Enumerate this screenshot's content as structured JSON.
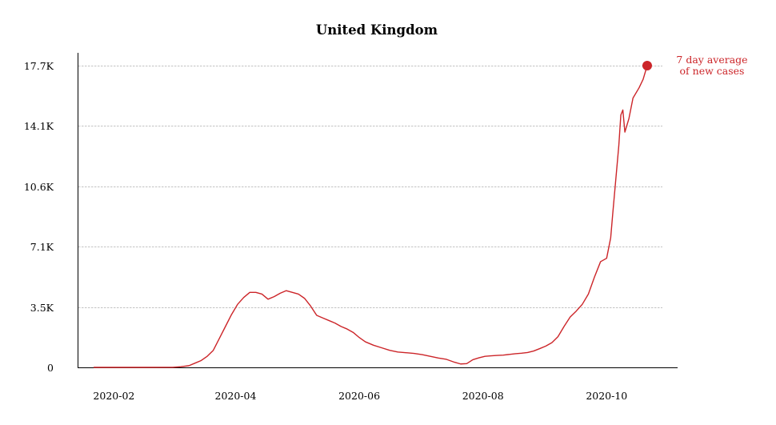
{
  "chart_data": {
    "type": "line",
    "title": "United Kingdom",
    "xlabel": "",
    "ylabel": "",
    "x_start": "2020-01-22",
    "x_end": "2020-10-21",
    "xlim": [
      "2020-01-20",
      "2020-11-05"
    ],
    "ylim": [
      0,
      17700
    ],
    "y_ticks": [
      {
        "value": 0,
        "label": "0"
      },
      {
        "value": 3540,
        "label": "3.5K"
      },
      {
        "value": 7080,
        "label": "7.1K"
      },
      {
        "value": 10620,
        "label": "10.6K"
      },
      {
        "value": 14160,
        "label": "14.1K"
      },
      {
        "value": 17700,
        "label": "17.7K"
      }
    ],
    "x_ticks": [
      {
        "value": "2020-02-01",
        "label": "2020-02"
      },
      {
        "value": "2020-04-01",
        "label": "2020-04"
      },
      {
        "value": "2020-06-01",
        "label": "2020-06"
      },
      {
        "value": "2020-08-01",
        "label": "2020-08"
      },
      {
        "value": "2020-10-01",
        "label": "2020-10"
      }
    ],
    "grid": {
      "horizontal": true,
      "vertical": false,
      "style": "dashed"
    },
    "colors": {
      "series": "#cc2529",
      "grid": "#b0b0b0",
      "axis": "#000000",
      "text": "#000000"
    },
    "series": [
      {
        "name": "7 day average of new cases",
        "annotation_lines": [
          "7 day average",
          "of new cases"
        ],
        "marker": "last-point",
        "points": [
          [
            "2020-01-22",
            0
          ],
          [
            "2020-02-15",
            0
          ],
          [
            "2020-03-01",
            5
          ],
          [
            "2020-03-05",
            40
          ],
          [
            "2020-03-09",
            100
          ],
          [
            "2020-03-12",
            250
          ],
          [
            "2020-03-15",
            400
          ],
          [
            "2020-03-18",
            650
          ],
          [
            "2020-03-21",
            1000
          ],
          [
            "2020-03-24",
            1700
          ],
          [
            "2020-03-27",
            2400
          ],
          [
            "2020-03-30",
            3100
          ],
          [
            "2020-04-02",
            3700
          ],
          [
            "2020-04-05",
            4100
          ],
          [
            "2020-04-08",
            4400
          ],
          [
            "2020-04-11",
            4400
          ],
          [
            "2020-04-14",
            4300
          ],
          [
            "2020-04-17",
            4000
          ],
          [
            "2020-04-20",
            4150
          ],
          [
            "2020-04-23",
            4350
          ],
          [
            "2020-04-26",
            4500
          ],
          [
            "2020-04-29",
            4400
          ],
          [
            "2020-05-02",
            4300
          ],
          [
            "2020-05-05",
            4050
          ],
          [
            "2020-05-08",
            3600
          ],
          [
            "2020-05-11",
            3050
          ],
          [
            "2020-05-14",
            2900
          ],
          [
            "2020-05-17",
            2750
          ],
          [
            "2020-05-20",
            2600
          ],
          [
            "2020-05-23",
            2400
          ],
          [
            "2020-05-26",
            2250
          ],
          [
            "2020-05-29",
            2050
          ],
          [
            "2020-06-01",
            1750
          ],
          [
            "2020-06-04",
            1500
          ],
          [
            "2020-06-08",
            1300
          ],
          [
            "2020-06-12",
            1150
          ],
          [
            "2020-06-16",
            1000
          ],
          [
            "2020-06-20",
            900
          ],
          [
            "2020-06-24",
            860
          ],
          [
            "2020-06-28",
            820
          ],
          [
            "2020-07-02",
            750
          ],
          [
            "2020-07-06",
            650
          ],
          [
            "2020-07-10",
            550
          ],
          [
            "2020-07-14",
            470
          ],
          [
            "2020-07-18",
            300
          ],
          [
            "2020-07-21",
            200
          ],
          [
            "2020-07-24",
            220
          ],
          [
            "2020-07-27",
            450
          ],
          [
            "2020-07-30",
            560
          ],
          [
            "2020-08-02",
            650
          ],
          [
            "2020-08-05",
            680
          ],
          [
            "2020-08-08",
            700
          ],
          [
            "2020-08-11",
            720
          ],
          [
            "2020-08-14",
            760
          ],
          [
            "2020-08-17",
            800
          ],
          [
            "2020-08-20",
            830
          ],
          [
            "2020-08-23",
            870
          ],
          [
            "2020-08-26",
            960
          ],
          [
            "2020-08-29",
            1100
          ],
          [
            "2020-09-01",
            1250
          ],
          [
            "2020-09-04",
            1450
          ],
          [
            "2020-09-07",
            1800
          ],
          [
            "2020-09-10",
            2400
          ],
          [
            "2020-09-13",
            2950
          ],
          [
            "2020-09-16",
            3300
          ],
          [
            "2020-09-19",
            3700
          ],
          [
            "2020-09-22",
            4300
          ],
          [
            "2020-09-25",
            5300
          ],
          [
            "2020-09-28",
            6200
          ],
          [
            "2020-10-01",
            6400
          ],
          [
            "2020-10-03",
            7600
          ],
          [
            "2020-10-04",
            9000
          ],
          [
            "2020-10-07",
            13000
          ],
          [
            "2020-10-08",
            14800
          ],
          [
            "2020-10-09",
            15100
          ],
          [
            "2020-10-10",
            13800
          ],
          [
            "2020-10-12",
            14600
          ],
          [
            "2020-10-14",
            15800
          ],
          [
            "2020-10-17",
            16400
          ],
          [
            "2020-10-19",
            16900
          ],
          [
            "2020-10-21",
            17700
          ]
        ]
      }
    ]
  }
}
